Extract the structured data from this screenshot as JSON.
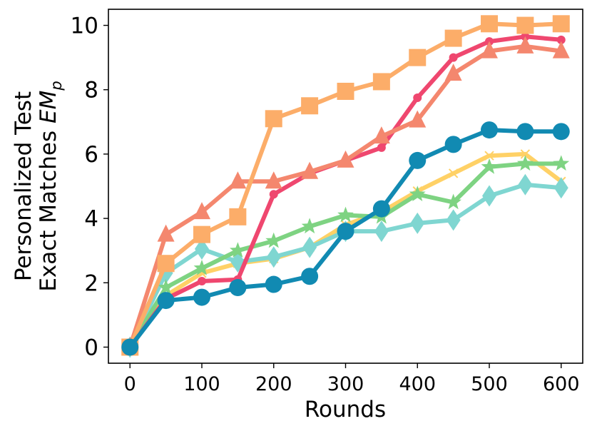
{
  "chart_data": {
    "type": "line",
    "title": "",
    "xlabel": "Rounds",
    "ylabel_line1": "Personalized Test",
    "ylabel_line2_prefix": "Exact Matches ",
    "ylabel_math": "EM",
    "ylabel_math_sub": "p",
    "x": [
      0,
      50,
      100,
      150,
      200,
      250,
      300,
      350,
      400,
      450,
      500,
      550,
      600
    ],
    "xlim": [
      -30,
      630
    ],
    "ylim": [
      -0.5,
      10.5
    ],
    "xticks": [
      0,
      100,
      200,
      300,
      400,
      500,
      600
    ],
    "yticks": [
      0,
      2,
      4,
      6,
      8,
      10
    ],
    "xtick_labels": [
      "0",
      "100",
      "200",
      "300",
      "400",
      "500",
      "600"
    ],
    "ytick_labels": [
      "0",
      "2",
      "4",
      "6",
      "8",
      "10"
    ],
    "grid": false,
    "series": [
      {
        "marker": "x",
        "color": "#FFD166",
        "values": [
          0,
          1.6,
          2.3,
          2.6,
          2.75,
          3.1,
          3.8,
          4.2,
          4.85,
          5.4,
          5.95,
          6.0,
          5.15
        ]
      },
      {
        "marker": "diamond",
        "color": "#7FD6D1",
        "values": [
          0,
          2.3,
          3.05,
          2.65,
          2.8,
          3.1,
          3.6,
          3.6,
          3.85,
          3.95,
          4.7,
          5.05,
          4.95
        ]
      },
      {
        "marker": "star",
        "color": "#7ED382",
        "values": [
          0,
          1.85,
          2.45,
          3.0,
          3.3,
          3.75,
          4.1,
          4.05,
          4.75,
          4.5,
          5.6,
          5.7,
          5.7
        ]
      },
      {
        "marker": "dot",
        "color": "#EF476F",
        "values": [
          0,
          1.5,
          2.05,
          2.1,
          4.75,
          5.4,
          5.8,
          6.2,
          7.75,
          9.0,
          9.5,
          9.65,
          9.55
        ]
      },
      {
        "marker": "triangle",
        "color": "#F4876E",
        "values": [
          0,
          3.5,
          4.2,
          5.15,
          5.15,
          5.45,
          5.8,
          6.55,
          7.05,
          8.5,
          9.2,
          9.35,
          9.2
        ]
      },
      {
        "marker": "square",
        "color": "#FCAD69",
        "values": [
          0,
          2.6,
          3.5,
          4.05,
          7.1,
          7.5,
          7.95,
          8.25,
          9.0,
          9.6,
          10.05,
          10.0,
          10.05
        ]
      },
      {
        "marker": "circle",
        "color": "#118AB2",
        "values": [
          0,
          1.45,
          1.55,
          1.85,
          1.95,
          2.2,
          3.6,
          4.3,
          5.8,
          6.3,
          6.75,
          6.7,
          6.7
        ]
      }
    ]
  }
}
